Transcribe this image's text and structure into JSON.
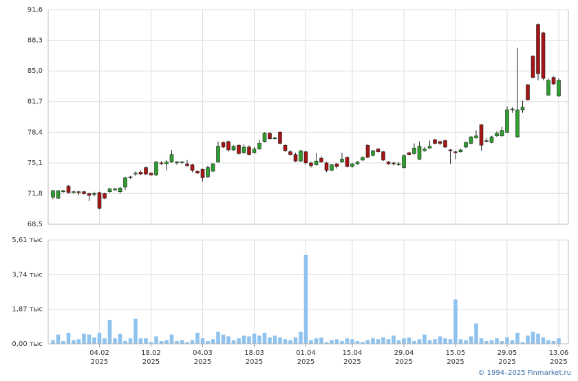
{
  "chart_data": [
    {
      "type": "candlestick",
      "open": [
        71.4,
        71.3,
        72.0,
        72.6,
        71.9,
        72.0,
        72.0,
        71.8,
        71.7,
        71.9,
        71.8,
        72.0,
        72.2,
        72.0,
        72.5,
        73.5,
        73.9,
        74.1,
        74.6,
        74.0,
        73.8,
        75.1,
        75.0,
        75.2,
        75.1,
        75.2,
        75.0,
        74.9,
        74.2,
        74.4,
        73.6,
        74.2,
        75.2,
        77.3,
        77.4,
        76.5,
        77.0,
        76.2,
        76.8,
        76.2,
        76.6,
        77.4,
        78.3,
        77.7,
        78.4,
        77.0,
        76.3,
        76.0,
        75.3,
        76.3,
        75.1,
        74.9,
        75.6,
        75.1,
        74.3,
        75.0,
        75.2,
        75.7,
        74.7,
        75.0,
        75.4,
        77.0,
        75.9,
        76.6,
        76.3,
        75.2,
        75.1,
        74.9,
        74.6,
        76.2,
        76.1,
        75.5,
        76.4,
        76.7,
        77.6,
        77.4,
        77.5,
        76.5,
        76.3,
        76.3,
        76.8,
        77.2,
        77.8,
        79.2,
        77.4,
        77.3,
        78.0,
        78.0,
        78.4,
        80.8,
        77.9,
        80.8,
        83.5,
        86.6,
        90.0,
        89.1,
        82.4,
        84.3,
        82.3
      ],
      "high": [
        72.2,
        72.2,
        72.2,
        72.7,
        72.1,
        72.1,
        72.1,
        71.9,
        72.0,
        72.0,
        71.9,
        72.4,
        72.4,
        72.5,
        73.6,
        73.7,
        74.2,
        74.3,
        74.7,
        74.1,
        75.3,
        75.3,
        75.4,
        76.5,
        75.3,
        75.3,
        75.4,
        75.0,
        74.3,
        74.5,
        74.8,
        75.1,
        77.4,
        77.4,
        77.5,
        77.0,
        77.1,
        77.1,
        77.0,
        76.8,
        77.6,
        78.4,
        78.4,
        77.9,
        78.5,
        77.1,
        76.5,
        76.2,
        76.5,
        76.4,
        75.2,
        76.2,
        75.8,
        75.2,
        75.0,
        75.1,
        76.2,
        75.8,
        75.1,
        75.3,
        75.8,
        77.1,
        76.5,
        76.7,
        76.4,
        75.3,
        75.2,
        75.2,
        76.0,
        76.3,
        77.2,
        77.4,
        76.8,
        77.5,
        77.7,
        77.5,
        77.6,
        76.6,
        76.4,
        76.6,
        77.4,
        78.0,
        78.6,
        79.3,
        77.8,
        78.0,
        78.5,
        79.0,
        81.2,
        81.1,
        87.5,
        81.8,
        83.6,
        86.7,
        90.1,
        89.2,
        84.2,
        84.4,
        84.2
      ],
      "low": [
        71.2,
        71.2,
        71.9,
        71.8,
        71.8,
        71.6,
        71.7,
        71.0,
        71.5,
        70.1,
        71.2,
        71.9,
        72.1,
        71.8,
        72.2,
        73.4,
        73.7,
        73.8,
        73.8,
        73.7,
        73.7,
        74.9,
        74.3,
        75.1,
        74.9,
        75.0,
        74.7,
        74.1,
        73.9,
        73.1,
        73.5,
        74.1,
        75.1,
        76.7,
        76.3,
        76.4,
        76.0,
        76.1,
        75.9,
        76.1,
        76.5,
        77.3,
        77.6,
        77.6,
        77.1,
        76.3,
        75.9,
        75.2,
        75.2,
        74.9,
        74.6,
        74.8,
        75.1,
        74.1,
        74.2,
        74.5,
        75.1,
        74.6,
        74.6,
        74.9,
        75.3,
        75.6,
        75.8,
        76.2,
        75.3,
        74.9,
        74.8,
        74.8,
        74.5,
        75.9,
        76.0,
        75.4,
        76.3,
        76.6,
        77.1,
        77.0,
        76.7,
        75.0,
        75.5,
        76.2,
        76.7,
        77.1,
        77.7,
        76.4,
        77.3,
        77.2,
        77.9,
        77.9,
        78.3,
        80.5,
        77.8,
        80.5,
        81.8,
        84.2,
        84.0,
        84.0,
        82.3,
        83.5,
        82.2
      ],
      "close": [
        72.1,
        72.1,
        72.1,
        71.9,
        72.0,
        71.9,
        71.8,
        71.6,
        71.8,
        70.2,
        71.3,
        72.3,
        72.3,
        72.4,
        73.5,
        73.6,
        74.0,
        73.9,
        73.9,
        73.8,
        75.2,
        75.0,
        75.2,
        76.0,
        75.2,
        75.2,
        74.8,
        74.3,
        74.0,
        73.5,
        74.6,
        75.0,
        76.9,
        76.8,
        76.5,
        76.9,
        76.1,
        76.8,
        76.0,
        76.6,
        77.2,
        78.3,
        77.7,
        77.8,
        77.2,
        76.4,
        76.0,
        75.3,
        76.4,
        75.1,
        74.8,
        75.3,
        75.2,
        74.3,
        74.9,
        74.7,
        75.5,
        74.7,
        75.0,
        75.2,
        75.7,
        75.7,
        76.4,
        76.3,
        75.4,
        75.0,
        75.0,
        75.0,
        75.9,
        76.0,
        76.7,
        76.9,
        76.6,
        76.9,
        77.2,
        77.2,
        76.8,
        76.4,
        76.2,
        76.5,
        77.3,
        77.9,
        78.0,
        77.0,
        77.5,
        77.9,
        78.3,
        78.6,
        80.8,
        80.9,
        80.8,
        81.1,
        81.9,
        84.3,
        84.7,
        84.2,
        84.0,
        83.6,
        84.0
      ],
      "up_color": "#2e9e2e",
      "down_color": "#a51515",
      "ylim": [
        68.5,
        91.6
      ],
      "yticks": [
        {
          "value": 68.5,
          "label": "68,5"
        },
        {
          "value": 71.8,
          "label": "71,8"
        },
        {
          "value": 75.1,
          "label": "75,1"
        },
        {
          "value": 78.4,
          "label": "78,4"
        },
        {
          "value": 81.7,
          "label": "81,7"
        },
        {
          "value": 85.0,
          "label": "85,0"
        },
        {
          "value": 88.3,
          "label": "88,3"
        },
        {
          "value": 91.6,
          "label": "91,6"
        }
      ],
      "grid": true
    },
    {
      "type": "bar",
      "values": [
        200,
        500,
        150,
        600,
        200,
        250,
        550,
        500,
        350,
        600,
        300,
        1300,
        300,
        550,
        150,
        300,
        1350,
        300,
        300,
        100,
        400,
        150,
        200,
        500,
        150,
        200,
        100,
        200,
        600,
        300,
        150,
        250,
        650,
        500,
        400,
        200,
        300,
        450,
        400,
        550,
        450,
        600,
        350,
        450,
        350,
        250,
        200,
        350,
        650,
        4800,
        200,
        300,
        350,
        100,
        200,
        250,
        150,
        300,
        250,
        150,
        100,
        200,
        300,
        250,
        350,
        250,
        450,
        200,
        300,
        350,
        150,
        250,
        500,
        200,
        250,
        400,
        300,
        250,
        2400,
        250,
        200,
        400,
        1100,
        300,
        150,
        200,
        300,
        150,
        350,
        200,
        600,
        100,
        450,
        650,
        550,
        350,
        200,
        150,
        300
      ],
      "color": "#8fc3ee",
      "ylim": [
        0,
        5610
      ],
      "yticks": [
        {
          "value": 0,
          "label": "0,00 тыс"
        },
        {
          "value": 1870,
          "label": "1,87 тыс"
        },
        {
          "value": 3740,
          "label": "3,74 тыс"
        },
        {
          "value": 5610,
          "label": "5,61 тыс"
        }
      ],
      "xticks": [
        {
          "value": 9,
          "label": "04.02",
          "year": "2025"
        },
        {
          "value": 19,
          "label": "18.02",
          "year": "2025"
        },
        {
          "value": 29,
          "label": "04.03",
          "year": "2025"
        },
        {
          "value": 39,
          "label": "18.03",
          "year": "2025"
        },
        {
          "value": 49,
          "label": "01.04",
          "year": "2025"
        },
        {
          "value": 58,
          "label": "15.04",
          "year": "2025"
        },
        {
          "value": 68,
          "label": "29.04",
          "year": "2025"
        },
        {
          "value": 78,
          "label": "15.05",
          "year": "2025"
        },
        {
          "value": 88,
          "label": "29.05",
          "year": "2025"
        },
        {
          "value": 98,
          "label": "13.06",
          "year": "2025"
        }
      ],
      "grid": true
    }
  ],
  "footer": "© 1994–2025 Finmarket.ru"
}
